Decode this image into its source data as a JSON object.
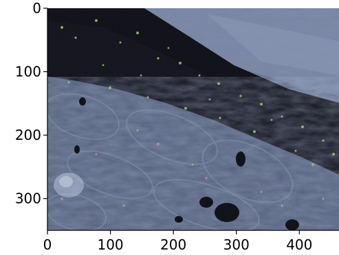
{
  "image": {
    "subject": "fluorescence microscopy tissue section",
    "palette": {
      "background": "#0b0b14",
      "tissue_blue": "#5a6a8c",
      "tissue_light": "#8898b4",
      "green_speckle": "#9fc46a",
      "magenta_speckle": "#c79ad8"
    }
  },
  "axes": {
    "x": {
      "ticks": [
        0,
        100,
        200,
        300,
        400
      ],
      "tick_labels": [
        "0",
        "100",
        "200",
        "300",
        "400"
      ],
      "range": [
        0,
        463
      ]
    },
    "y": {
      "ticks": [
        0,
        100,
        200,
        300
      ],
      "tick_labels": [
        "0",
        "100",
        "200",
        "300"
      ],
      "range": [
        0,
        350
      ]
    }
  }
}
